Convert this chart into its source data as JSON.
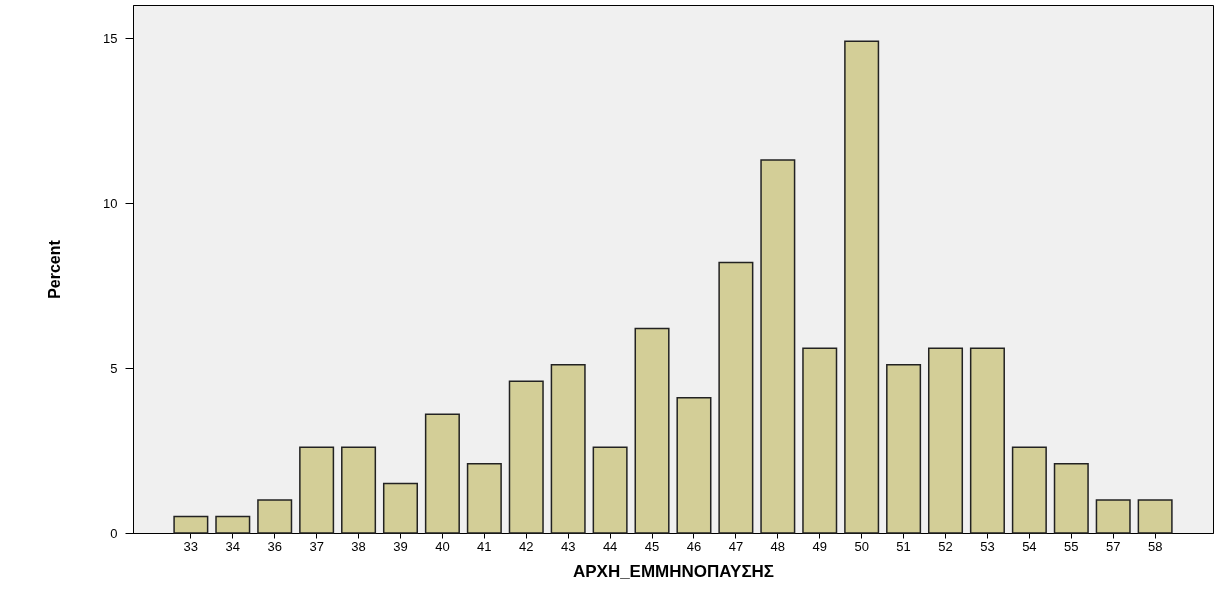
{
  "chart_data": {
    "type": "bar",
    "xlabel": "ΑΡΧΗ_ΕΜΜΗΝΟΠΑΥΣΗΣ",
    "ylabel": "Percent",
    "categories": [
      "33",
      "34",
      "36",
      "37",
      "38",
      "39",
      "40",
      "41",
      "42",
      "43",
      "44",
      "45",
      "46",
      "47",
      "48",
      "49",
      "50",
      "51",
      "52",
      "53",
      "54",
      "55",
      "57",
      "58"
    ],
    "values": [
      0.5,
      0.5,
      1.0,
      2.6,
      2.6,
      1.5,
      3.6,
      2.1,
      4.6,
      5.1,
      2.6,
      6.2,
      4.1,
      8.2,
      11.3,
      5.6,
      14.9,
      5.1,
      5.6,
      5.6,
      2.6,
      2.1,
      1.0,
      1.0
    ],
    "color": "#d3ce97",
    "ylim": [
      0,
      16
    ],
    "yticks": [
      0,
      5,
      10,
      15
    ]
  }
}
